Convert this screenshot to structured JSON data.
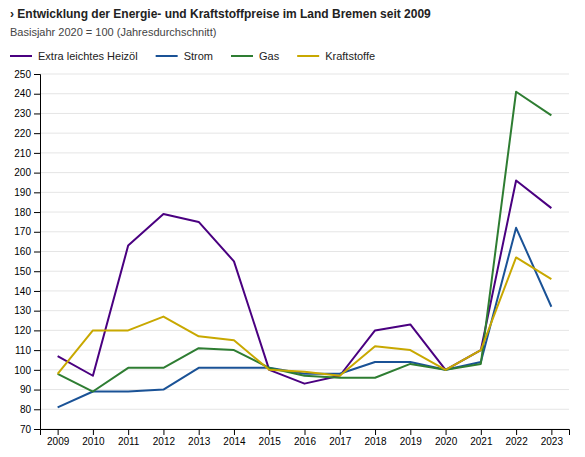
{
  "chart_data": {
    "type": "line",
    "title": "› Entwicklung der Energie- und Kraftstoffpreise im Land Bremen seit 2009",
    "subtitle": "Basisjahr 2020 = 100 (Jahresdurchschnitt)",
    "x": [
      2009,
      2010,
      2011,
      2012,
      2013,
      2014,
      2015,
      2016,
      2017,
      2018,
      2019,
      2020,
      2021,
      2022,
      2023
    ],
    "series": [
      {
        "name": "Extra leichtes Heizöl",
        "color": "#4a0080",
        "values": [
          107,
          97,
          163,
          179,
          175,
          155,
          100,
          93,
          97,
          120,
          123,
          100,
          110,
          196,
          182
        ]
      },
      {
        "name": "Strom",
        "color": "#1a5296",
        "values": [
          81,
          89,
          89,
          90,
          101,
          101,
          101,
          98,
          98,
          104,
          104,
          100,
          104,
          172,
          132
        ]
      },
      {
        "name": "Gas",
        "color": "#2e7d32",
        "values": [
          98,
          89,
          101,
          101,
          111,
          110,
          101,
          97,
          96,
          96,
          103,
          100,
          103,
          241,
          229
        ]
      },
      {
        "name": "Kraftstoffe",
        "color": "#c8a800",
        "values": [
          98,
          120,
          120,
          127,
          117,
          115,
          100,
          99,
          97,
          112,
          110,
          100,
          110,
          157,
          146
        ]
      }
    ],
    "xlim": [
      2008.5,
      2023.5
    ],
    "xticks": [
      2009,
      2010,
      2011,
      2012,
      2013,
      2014,
      2015,
      2016,
      2017,
      2018,
      2019,
      2020,
      2021,
      2022,
      2023
    ],
    "ylim": [
      70,
      250
    ],
    "yticks": [
      70,
      80,
      90,
      100,
      110,
      120,
      130,
      140,
      150,
      160,
      170,
      180,
      190,
      200,
      210,
      220,
      230,
      240,
      250
    ],
    "grid": true,
    "legend": "top"
  }
}
